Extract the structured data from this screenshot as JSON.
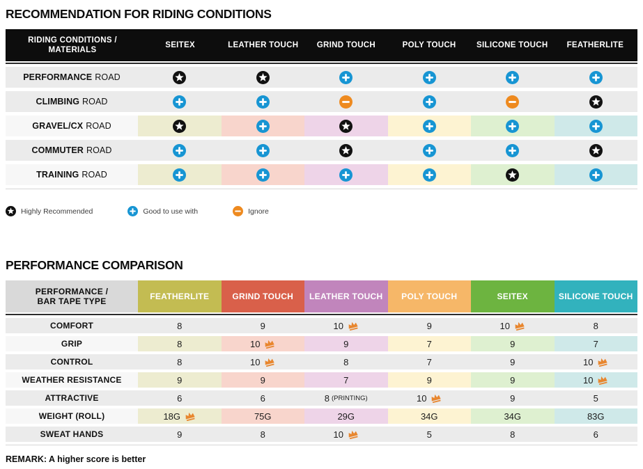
{
  "colors": {
    "star": "#111111",
    "plus": "#1795d3",
    "minus": "#ee8a1f",
    "crown": "#e8862e",
    "row_gray": "#ebebeb",
    "row_light": "#f7f7f7",
    "tints": [
      "#edecd0",
      "#f8d5cc",
      "#eed4e8",
      "#fdf3d2",
      "#def0d0",
      "#cfe9e9"
    ]
  },
  "table1": {
    "title": "RECOMMENDATION FOR RIDING CONDITIONS",
    "header": {
      "label_line1": "RIDING CONDITIONS /",
      "label_line2": "MATERIALS",
      "columns": [
        "SEITEX",
        "LEATHER TOUCH",
        "GRIND TOUCH",
        "POLY TOUCH",
        "SILICONE TOUCH",
        "FEATHERLITE"
      ]
    },
    "rows": [
      {
        "label_bold": "PERFORMANCE",
        "label_rest": "ROAD",
        "tinted": false,
        "cells": [
          "star",
          "star",
          "plus",
          "plus",
          "plus",
          "plus"
        ]
      },
      {
        "label_bold": "CLIMBING",
        "label_rest": "ROAD",
        "tinted": false,
        "cells": [
          "plus",
          "plus",
          "minus",
          "plus",
          "minus",
          "star"
        ]
      },
      {
        "label_bold": "GRAVEL/CX",
        "label_rest": "ROAD",
        "tinted": true,
        "cells": [
          "star",
          "plus",
          "star",
          "plus",
          "plus",
          "plus"
        ]
      },
      {
        "label_bold": "COMMUTER",
        "label_rest": "ROAD",
        "tinted": false,
        "cells": [
          "plus",
          "plus",
          "star",
          "plus",
          "plus",
          "star"
        ]
      },
      {
        "label_bold": "TRAINING",
        "label_rest": "ROAD",
        "tinted": true,
        "cells": [
          "plus",
          "plus",
          "plus",
          "plus",
          "star",
          "plus"
        ]
      }
    ],
    "legend": [
      {
        "icon": "star",
        "label": "Highly Recommended"
      },
      {
        "icon": "plus",
        "label": "Good to use with"
      },
      {
        "icon": "minus",
        "label": "Ignore"
      }
    ]
  },
  "table2": {
    "title": "PERFORMANCE COMPARISON",
    "header": {
      "label_line1": "PERFORMANCE /",
      "label_line2": "BAR TAPE TYPE",
      "columns": [
        {
          "label": "FEATHERLITE",
          "color": "#c3bc52"
        },
        {
          "label": "GRIND TOUCH",
          "color": "#d9604a"
        },
        {
          "label": "LEATHER TOUCH",
          "color": "#c185bc"
        },
        {
          "label": "POLY TOUCH",
          "color": "#f6b768"
        },
        {
          "label": "SEITEX",
          "color": "#6db440"
        },
        {
          "label": "SILICONE TOUCH",
          "color": "#32b2bd"
        }
      ]
    },
    "rows": [
      {
        "label": "COMFORT",
        "tinted": false,
        "cells": [
          {
            "value": "8"
          },
          {
            "value": "9"
          },
          {
            "value": "10",
            "crown": true
          },
          {
            "value": "9"
          },
          {
            "value": "10",
            "crown": true
          },
          {
            "value": "8"
          }
        ]
      },
      {
        "label": "GRIP",
        "tinted": true,
        "cells": [
          {
            "value": "8"
          },
          {
            "value": "10",
            "crown": true
          },
          {
            "value": "9"
          },
          {
            "value": "7"
          },
          {
            "value": "9"
          },
          {
            "value": "7"
          }
        ]
      },
      {
        "label": "CONTROL",
        "tinted": false,
        "cells": [
          {
            "value": "8"
          },
          {
            "value": "10",
            "crown": true
          },
          {
            "value": "8"
          },
          {
            "value": "7"
          },
          {
            "value": "9"
          },
          {
            "value": "10",
            "crown": true
          }
        ]
      },
      {
        "label": "WEATHER RESISTANCE",
        "tinted": true,
        "cells": [
          {
            "value": "9"
          },
          {
            "value": "9"
          },
          {
            "value": "7"
          },
          {
            "value": "9"
          },
          {
            "value": "9"
          },
          {
            "value": "10",
            "crown": true
          }
        ]
      },
      {
        "label": "ATTRACTIVE",
        "tinted": false,
        "cells": [
          {
            "value": "6"
          },
          {
            "value": "6"
          },
          {
            "value": "8",
            "suffix": "(PRINTING)"
          },
          {
            "value": "10",
            "crown": true
          },
          {
            "value": "9"
          },
          {
            "value": "5"
          }
        ]
      },
      {
        "label": "WEIGHT (ROLL)",
        "tinted": true,
        "cells": [
          {
            "value": "18G",
            "crown": true
          },
          {
            "value": "75G"
          },
          {
            "value": "29G"
          },
          {
            "value": "34G"
          },
          {
            "value": "34G"
          },
          {
            "value": "83G"
          }
        ]
      },
      {
        "label": "SWEAT HANDS",
        "tinted": false,
        "cells": [
          {
            "value": "9"
          },
          {
            "value": "8"
          },
          {
            "value": "10",
            "crown": true
          },
          {
            "value": "5"
          },
          {
            "value": "8"
          },
          {
            "value": "6"
          }
        ]
      }
    ],
    "remark": "REMARK: A higher score is better"
  }
}
